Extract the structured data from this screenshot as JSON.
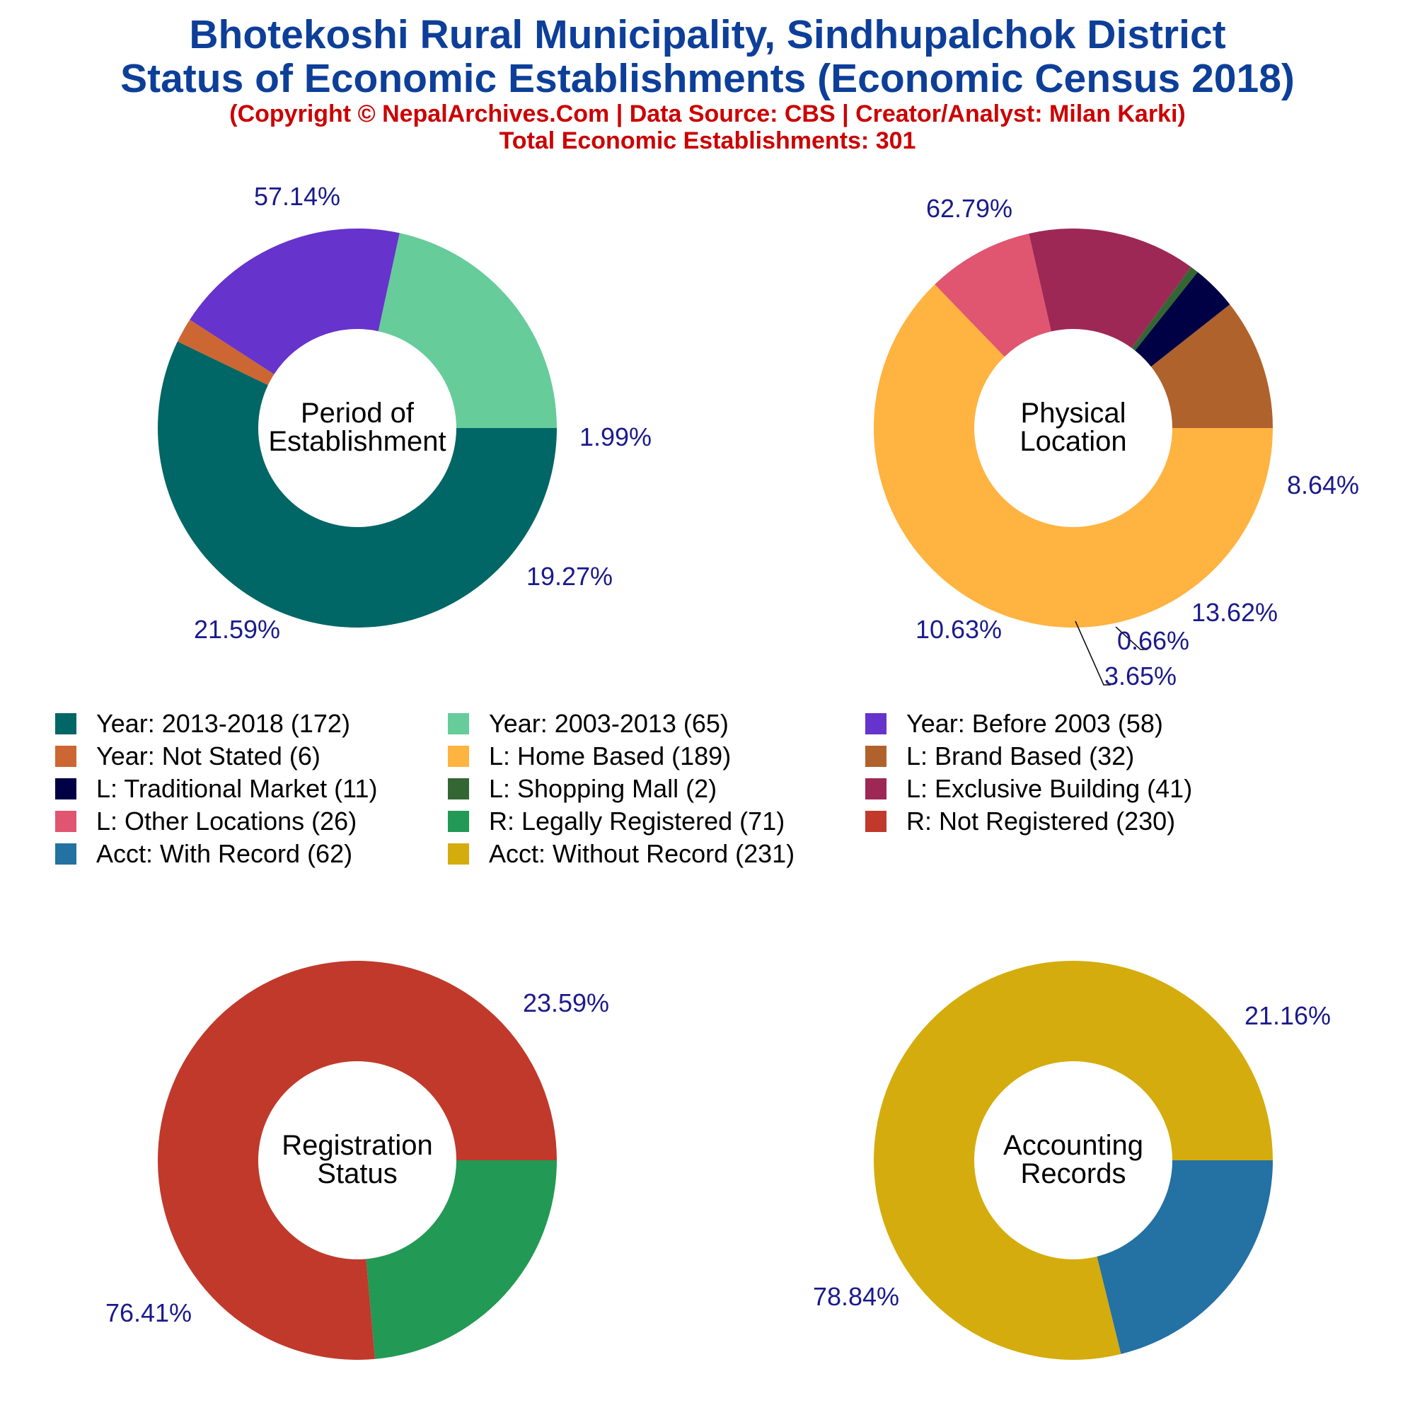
{
  "header": {
    "title_line1": "Bhotekoshi Rural Municipality, Sindhupalchok District",
    "title_line2": "Status of Economic Establishments (Economic Census 2018)",
    "copyright": "(Copyright © NepalArchives.Com | Data Source: CBS | Creator/Analyst: Milan Karki)",
    "total": "Total Economic Establishments: 301"
  },
  "chart_data": [
    {
      "type": "pie",
      "center_label": [
        "Period of",
        "Establishment"
      ],
      "slices": [
        {
          "label": "Year: 2013-2018",
          "value": 172,
          "pct": "57.14%",
          "color": "#006666"
        },
        {
          "label": "Year: Not Stated",
          "value": 6,
          "pct": "1.99%",
          "color": "#cc6633"
        },
        {
          "label": "Year: Before 2003",
          "value": 58,
          "pct": "19.27%",
          "color": "#6633cc"
        },
        {
          "label": "Year: 2003-2013",
          "value": 65,
          "pct": "21.59%",
          "color": "#66cc99"
        }
      ]
    },
    {
      "type": "pie",
      "center_label": [
        "Physical",
        "Location"
      ],
      "slices": [
        {
          "label": "L: Home Based",
          "value": 189,
          "pct": "62.79%",
          "color": "#ffb340"
        },
        {
          "label": "L: Other Locations",
          "value": 26,
          "pct": "8.64%",
          "color": "#e05570"
        },
        {
          "label": "L: Exclusive Building",
          "value": 41,
          "pct": "13.62%",
          "color": "#9e2855"
        },
        {
          "label": "L: Shopping Mall",
          "value": 2,
          "pct": "0.66%",
          "color": "#336633"
        },
        {
          "label": "L: Traditional Market",
          "value": 11,
          "pct": "3.65%",
          "color": "#000044"
        },
        {
          "label": "L: Brand Based",
          "value": 32,
          "pct": "10.63%",
          "color": "#b0622c"
        }
      ]
    },
    {
      "type": "pie",
      "center_label": [
        "Registration",
        "Status"
      ],
      "slices": [
        {
          "label": "R: Legally Registered",
          "value": 71,
          "pct": "23.59%",
          "color": "#229955"
        },
        {
          "label": "R: Not Registered",
          "value": 230,
          "pct": "76.41%",
          "color": "#c0392b"
        }
      ]
    },
    {
      "type": "pie",
      "center_label": [
        "Accounting",
        "Records"
      ],
      "slices": [
        {
          "label": "Acct: With Record",
          "value": 62,
          "pct": "21.16%",
          "color": "#2471a3"
        },
        {
          "label": "Acct: Without Record",
          "value": 231,
          "pct": "78.84%",
          "color": "#d4ac0d"
        }
      ]
    }
  ],
  "legend": [
    {
      "text": "Year: 2013-2018 (172)",
      "color": "#006666"
    },
    {
      "text": "Year: 2003-2013 (65)",
      "color": "#66cc99"
    },
    {
      "text": "Year: Before 2003 (58)",
      "color": "#6633cc"
    },
    {
      "text": "Year: Not Stated (6)",
      "color": "#cc6633"
    },
    {
      "text": "L: Home Based (189)",
      "color": "#ffb340"
    },
    {
      "text": "L: Brand Based (32)",
      "color": "#b0622c"
    },
    {
      "text": "L: Traditional Market (11)",
      "color": "#000044"
    },
    {
      "text": "L: Shopping Mall (2)",
      "color": "#336633"
    },
    {
      "text": "L: Exclusive Building (41)",
      "color": "#9e2855"
    },
    {
      "text": "L: Other Locations (26)",
      "color": "#e05570"
    },
    {
      "text": "R: Legally Registered (71)",
      "color": "#229955"
    },
    {
      "text": "R: Not Registered (230)",
      "color": "#c0392b"
    },
    {
      "text": "Acct: With Record (62)",
      "color": "#2471a3"
    },
    {
      "text": "Acct: Without Record (231)",
      "color": "#d4ac0d"
    }
  ]
}
